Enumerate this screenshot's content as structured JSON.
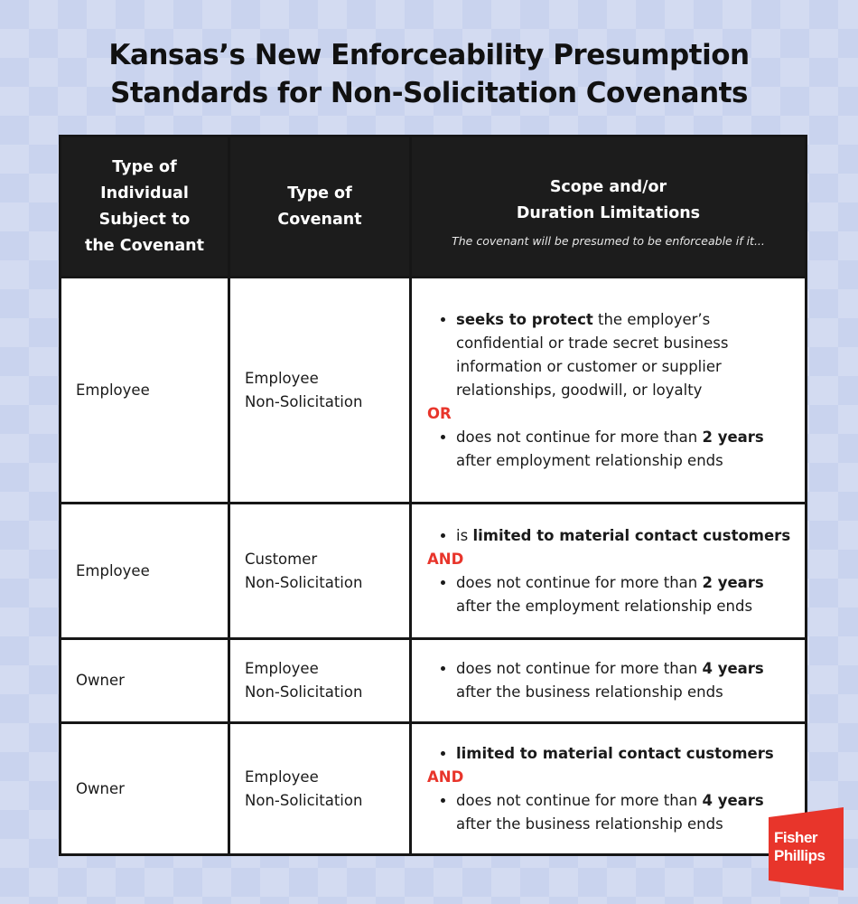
{
  "title": {
    "line1": "Kansas’s New Enforceability Presumption",
    "line2": "Standards for Non-Solicitation Covenants"
  },
  "header": {
    "individual": [
      "Type of",
      "Individual",
      "Subject to",
      "the Covenant"
    ],
    "covenant": [
      "Type of",
      "Covenant"
    ],
    "scope": [
      "Scope and/or",
      "Duration Limitations"
    ],
    "scope_note": "The covenant will be presumed to be enforceable if it..."
  },
  "rows": [
    {
      "individual": "Employee",
      "covenant": [
        "Employee",
        "Non-Solicitation"
      ],
      "b1_bold": "seeks to protect",
      "b1_rest": " the employer’s confidential or trade secret business information or customer or supplier relationships, goodwill, or loyalty",
      "conj": "OR",
      "b2_pre": "does not continue for more than ",
      "b2_bold": "2 years",
      "b2_post": " after employment relationship ends"
    },
    {
      "individual": "Employee",
      "covenant": [
        "Customer",
        "Non-Solicitation"
      ],
      "b1_pre": "is ",
      "b1_bold": "limited to material contact customers",
      "conj": "AND",
      "b2_pre": "does not continue for more than ",
      "b2_bold": "2 years",
      "b2_post": " after the employment relationship ends"
    },
    {
      "individual": "Owner",
      "covenant": [
        "Employee",
        "Non-Solicitation"
      ],
      "b1_pre": "does not continue for more than ",
      "b1_bold": "4 years",
      "b1_post": " after the business relationship ends"
    },
    {
      "individual": "Owner",
      "covenant": [
        "Employee",
        "Non-Solicitation"
      ],
      "b1_bold": "limited to material contact customers",
      "conj": "AND",
      "b2_pre": "does not continue for more than ",
      "b2_bold": "4 years",
      "b2_post": " after the business relationship ends"
    }
  ],
  "logo": {
    "line1": "Fisher",
    "line2": "Phillips",
    "color": "#e8352b"
  }
}
